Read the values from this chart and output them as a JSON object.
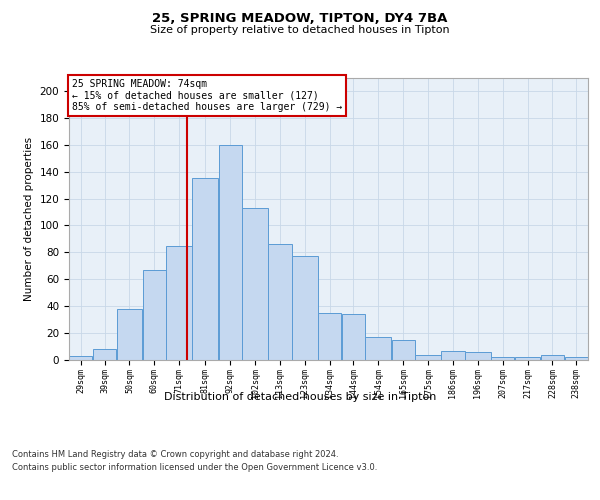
{
  "title1": "25, SPRING MEADOW, TIPTON, DY4 7BA",
  "title2": "Size of property relative to detached houses in Tipton",
  "xlabel": "Distribution of detached houses by size in Tipton",
  "ylabel": "Number of detached properties",
  "bin_labels": [
    "29sqm",
    "39sqm",
    "50sqm",
    "60sqm",
    "71sqm",
    "81sqm",
    "92sqm",
    "102sqm",
    "113sqm",
    "123sqm",
    "134sqm",
    "144sqm",
    "154sqm",
    "165sqm",
    "175sqm",
    "186sqm",
    "196sqm",
    "207sqm",
    "217sqm",
    "228sqm",
    "238sqm"
  ],
  "bar_heights": [
    3,
    8,
    38,
    67,
    85,
    135,
    160,
    113,
    86,
    77,
    35,
    34,
    17,
    15,
    4,
    7,
    6,
    2,
    2,
    4,
    2
  ],
  "bar_color": "#c5d8f0",
  "bar_edge_color": "#5b9bd5",
  "vline_x": 74,
  "vline_color": "#cc0000",
  "annotation_text": "25 SPRING MEADOW: 74sqm\n← 15% of detached houses are smaller (127)\n85% of semi-detached houses are larger (729) →",
  "annotation_box_color": "#ffffff",
  "annotation_box_edge": "#cc0000",
  "ylim": [
    0,
    210
  ],
  "yticks": [
    0,
    20,
    40,
    60,
    80,
    100,
    120,
    140,
    160,
    180,
    200
  ],
  "grid_color": "#c8d8e8",
  "background_color": "#e8f0f8",
  "footer1": "Contains HM Land Registry data © Crown copyright and database right 2024.",
  "footer2": "Contains public sector information licensed under the Open Government Licence v3.0.",
  "bin_edges": [
    24,
    34,
    44,
    55,
    65,
    76,
    87,
    97,
    108,
    118,
    129,
    139,
    149,
    160,
    170,
    181,
    191,
    202,
    212,
    223,
    233,
    243
  ]
}
